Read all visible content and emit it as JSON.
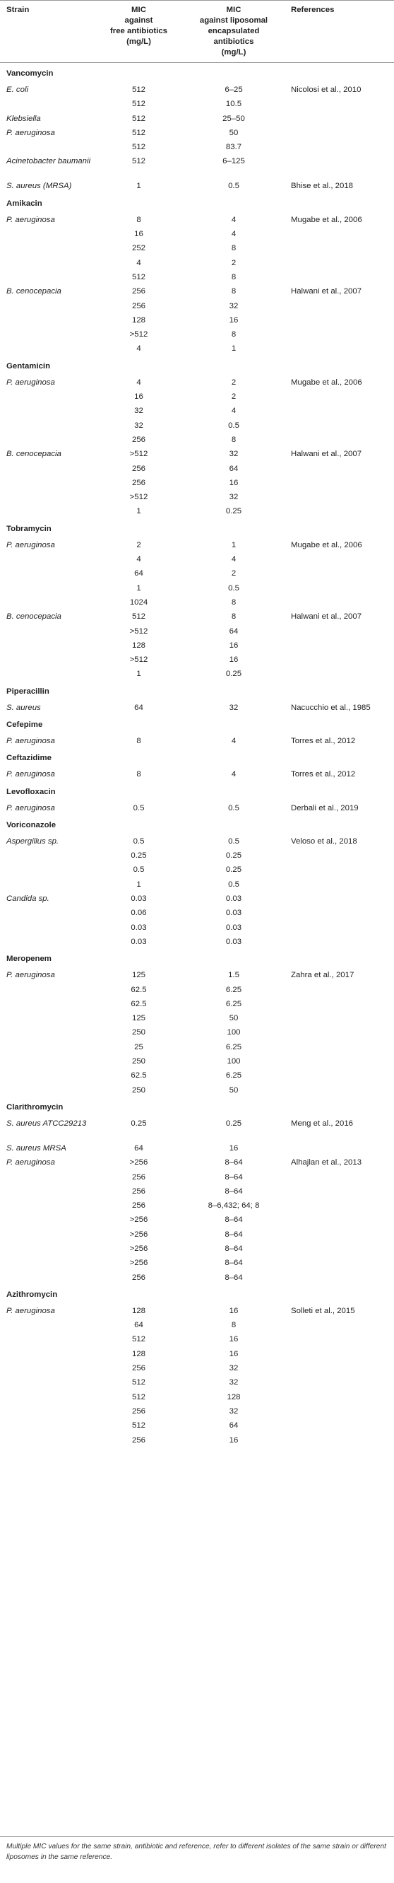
{
  "table": {
    "headers": {
      "strain": "Strain",
      "mic_free": [
        "MIC",
        "against",
        "free antibiotics",
        "(mg/L)"
      ],
      "mic_liposomal": [
        "MIC",
        "against liposomal",
        "encapsulated",
        "antibiotics",
        "(mg/L)"
      ],
      "references": "References"
    },
    "groups": [
      {
        "antibiotic": "Vancomycin",
        "rows": [
          {
            "strain": "E. coli",
            "free": "512",
            "lipo": "6–25",
            "ref": "Nicolosi et al., 2010"
          },
          {
            "strain": "",
            "free": "512",
            "lipo": "10.5",
            "ref": ""
          },
          {
            "strain": "Klebsiella",
            "free": "512",
            "lipo": "25–50",
            "ref": ""
          },
          {
            "strain": "P. aeruginosa",
            "free": "512",
            "lipo": "50",
            "ref": ""
          },
          {
            "strain": "",
            "free": "512",
            "lipo": "83.7",
            "ref": ""
          },
          {
            "strain": "Acinetobacter baumanii",
            "free": "512",
            "lipo": "6–125",
            "ref": ""
          },
          {
            "strain": "S. aureus (MRSA)",
            "free": "1",
            "lipo": "0.5",
            "ref": "Bhise et al., 2018"
          }
        ]
      },
      {
        "antibiotic": "Amikacin",
        "rows": [
          {
            "strain": "P. aeruginosa",
            "free": "8",
            "lipo": "4",
            "ref": "Mugabe et al., 2006"
          },
          {
            "strain": "",
            "free": "16",
            "lipo": "4",
            "ref": ""
          },
          {
            "strain": "",
            "free": "252",
            "lipo": "8",
            "ref": ""
          },
          {
            "strain": "",
            "free": "4",
            "lipo": "2",
            "ref": ""
          },
          {
            "strain": "",
            "free": "512",
            "lipo": "8",
            "ref": ""
          },
          {
            "strain": "B. cenocepacia",
            "free": "256",
            "lipo": "8",
            "ref": "Halwani et al., 2007"
          },
          {
            "strain": "",
            "free": "256",
            "lipo": "32",
            "ref": ""
          },
          {
            "strain": "",
            "free": "128",
            "lipo": "16",
            "ref": ""
          },
          {
            "strain": "",
            "free": ">512",
            "lipo": "8",
            "ref": ""
          },
          {
            "strain": "",
            "free": "4",
            "lipo": "1",
            "ref": ""
          }
        ]
      },
      {
        "antibiotic": "Gentamicin",
        "rows": [
          {
            "strain": "P. aeruginosa",
            "free": "4",
            "lipo": "2",
            "ref": "Mugabe et al., 2006"
          },
          {
            "strain": "",
            "free": "16",
            "lipo": "2",
            "ref": ""
          },
          {
            "strain": "",
            "free": "32",
            "lipo": "4",
            "ref": ""
          },
          {
            "strain": "",
            "free": "32",
            "lipo": "0.5",
            "ref": ""
          },
          {
            "strain": "",
            "free": "256",
            "lipo": "8",
            "ref": ""
          },
          {
            "strain": "B. cenocepacia",
            "free": ">512",
            "lipo": "32",
            "ref": "Halwani et al., 2007"
          },
          {
            "strain": "",
            "free": "256",
            "lipo": "64",
            "ref": ""
          },
          {
            "strain": "",
            "free": "256",
            "lipo": "16",
            "ref": ""
          },
          {
            "strain": "",
            "free": ">512",
            "lipo": "32",
            "ref": ""
          },
          {
            "strain": "",
            "free": "1",
            "lipo": "0.25",
            "ref": ""
          }
        ]
      },
      {
        "antibiotic": "Tobramycin",
        "rows": [
          {
            "strain": "P. aeruginosa",
            "free": "2",
            "lipo": "1",
            "ref": "Mugabe et al., 2006"
          },
          {
            "strain": "",
            "free": "4",
            "lipo": "4",
            "ref": ""
          },
          {
            "strain": "",
            "free": "64",
            "lipo": "2",
            "ref": ""
          },
          {
            "strain": "",
            "free": "1",
            "lipo": "0.5",
            "ref": ""
          },
          {
            "strain": "",
            "free": "1024",
            "lipo": "8",
            "ref": ""
          },
          {
            "strain": "B. cenocepacia",
            "free": "512",
            "lipo": "8",
            "ref": "Halwani et al., 2007"
          },
          {
            "strain": "",
            "free": ">512",
            "lipo": "64",
            "ref": ""
          },
          {
            "strain": "",
            "free": "128",
            "lipo": "16",
            "ref": ""
          },
          {
            "strain": "",
            "free": ">512",
            "lipo": "16",
            "ref": ""
          },
          {
            "strain": "",
            "free": "1",
            "lipo": "0.25",
            "ref": ""
          }
        ]
      },
      {
        "antibiotic": "Piperacillin",
        "rows": [
          {
            "strain": "S. aureus",
            "free": "64",
            "lipo": "32",
            "ref": "Nacucchio et al., 1985"
          }
        ]
      },
      {
        "antibiotic": "Cefepime",
        "rows": [
          {
            "strain": "P. aeruginosa",
            "free": "8",
            "lipo": "4",
            "ref": "Torres et al., 2012"
          }
        ]
      },
      {
        "antibiotic": "Ceftazidime",
        "rows": [
          {
            "strain": "P. aeruginosa",
            "free": "8",
            "lipo": "4",
            "ref": "Torres et al., 2012"
          }
        ]
      },
      {
        "antibiotic": "Levofloxacin",
        "rows": [
          {
            "strain": "P. aeruginosa",
            "free": "0.5",
            "lipo": "0.5",
            "ref": "Derbali et al., 2019"
          }
        ]
      },
      {
        "antibiotic": "Voriconazole",
        "rows": [
          {
            "strain": "Aspergillus sp.",
            "free": "0.5",
            "lipo": "0.5",
            "ref": "Veloso et al., 2018"
          },
          {
            "strain": "",
            "free": "0.25",
            "lipo": "0.25",
            "ref": ""
          },
          {
            "strain": "",
            "free": "0.5",
            "lipo": "0.25",
            "ref": ""
          },
          {
            "strain": "",
            "free": "1",
            "lipo": "0.5",
            "ref": ""
          },
          {
            "strain": "Candida sp.",
            "free": "0.03",
            "lipo": "0.03",
            "ref": ""
          },
          {
            "strain": "",
            "free": "0.06",
            "lipo": "0.03",
            "ref": ""
          },
          {
            "strain": "",
            "free": "0.03",
            "lipo": "0.03",
            "ref": ""
          },
          {
            "strain": "",
            "free": "0.03",
            "lipo": "0.03",
            "ref": ""
          }
        ]
      },
      {
        "antibiotic": "Meropenem",
        "rows": [
          {
            "strain": "P. aeruginosa",
            "free": "125",
            "lipo": "1.5",
            "ref": "Zahra et al., 2017"
          },
          {
            "strain": "",
            "free": "62.5",
            "lipo": "6.25",
            "ref": ""
          },
          {
            "strain": "",
            "free": "62.5",
            "lipo": "6.25",
            "ref": ""
          },
          {
            "strain": "",
            "free": "125",
            "lipo": "50",
            "ref": ""
          },
          {
            "strain": "",
            "free": "250",
            "lipo": "100",
            "ref": ""
          },
          {
            "strain": "",
            "free": "25",
            "lipo": "6.25",
            "ref": ""
          },
          {
            "strain": "",
            "free": "250",
            "lipo": "100",
            "ref": ""
          },
          {
            "strain": "",
            "free": "62.5",
            "lipo": "6.25",
            "ref": ""
          },
          {
            "strain": "",
            "free": "250",
            "lipo": "50",
            "ref": ""
          }
        ]
      },
      {
        "antibiotic": "Clarithromycin",
        "rows": [
          {
            "strain": "S. aureus ATCC29213",
            "free": "0.25",
            "lipo": "0.25",
            "ref": "Meng et al., 2016"
          },
          {
            "strain": "S. aureus MRSA",
            "free": "64",
            "lipo": "16",
            "ref": ""
          },
          {
            "strain": "P. aeruginosa",
            "free": ">256",
            "lipo": "8–64",
            "ref": "Alhajlan et al., 2013"
          },
          {
            "strain": "",
            "free": "256",
            "lipo": "8–64",
            "ref": ""
          },
          {
            "strain": "",
            "free": "256",
            "lipo": "8–64",
            "ref": ""
          },
          {
            "strain": "",
            "free": "256",
            "lipo": "8–6,432; 64; 8",
            "ref": ""
          },
          {
            "strain": "",
            "free": ">256",
            "lipo": "8–64",
            "ref": ""
          },
          {
            "strain": "",
            "free": ">256",
            "lipo": "8–64",
            "ref": ""
          },
          {
            "strain": "",
            "free": ">256",
            "lipo": "8–64",
            "ref": ""
          },
          {
            "strain": "",
            "free": ">256",
            "lipo": "8–64",
            "ref": ""
          },
          {
            "strain": "",
            "free": "256",
            "lipo": "8–64",
            "ref": ""
          }
        ]
      },
      {
        "antibiotic": "Azithromycin",
        "rows": [
          {
            "strain": "P. aeruginosa",
            "free": "128",
            "lipo": "16",
            "ref": "Solleti et al., 2015"
          },
          {
            "strain": "",
            "free": "64",
            "lipo": "8",
            "ref": ""
          },
          {
            "strain": "",
            "free": "512",
            "lipo": "16",
            "ref": ""
          },
          {
            "strain": "",
            "free": "128",
            "lipo": "16",
            "ref": ""
          },
          {
            "strain": "",
            "free": "256",
            "lipo": "32",
            "ref": ""
          },
          {
            "strain": "",
            "free": "512",
            "lipo": "32",
            "ref": ""
          },
          {
            "strain": "",
            "free": "512",
            "lipo": "128",
            "ref": ""
          },
          {
            "strain": "",
            "free": "256",
            "lipo": "32",
            "ref": ""
          },
          {
            "strain": "",
            "free": "512",
            "lipo": "64",
            "ref": ""
          },
          {
            "strain": "",
            "free": "256",
            "lipo": "16",
            "ref": ""
          }
        ]
      }
    ],
    "footnote": "Multiple MIC values for the same strain, antibiotic and reference, refer to different isolates of the same strain or different liposomes in the same reference."
  }
}
